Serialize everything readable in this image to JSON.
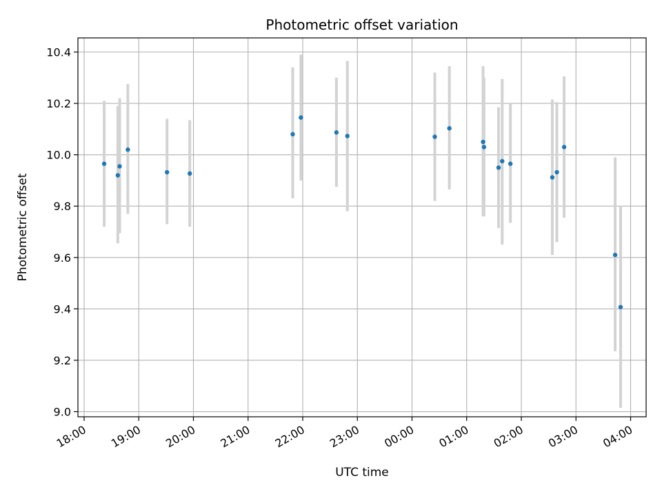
{
  "chart_data": {
    "type": "scatter",
    "title": "Photometric offset variation",
    "xlabel": "UTC time",
    "ylabel": "Photometric offset",
    "x_axis_type": "time",
    "x_start_date": "18:00",
    "xticks": [
      "18:00",
      "19:00",
      "20:00",
      "21:00",
      "22:00",
      "23:00",
      "00:00",
      "01:00",
      "02:00",
      "03:00",
      "04:00"
    ],
    "ylim": [
      8.98,
      10.455
    ],
    "yticks": [
      "9.0",
      "9.2",
      "9.4",
      "9.6",
      "9.8",
      "10.0",
      "10.2",
      "10.4"
    ],
    "grid": true,
    "point_color": "#1f77b4",
    "errorbar_color": "#d3d3d3",
    "points": [
      {
        "t": "18:22",
        "y": 9.965,
        "lo": 9.72,
        "hi": 10.21
      },
      {
        "t": "18:37",
        "y": 9.92,
        "lo": 9.655,
        "hi": 10.19
      },
      {
        "t": "18:39",
        "y": 9.955,
        "lo": 9.695,
        "hi": 10.22
      },
      {
        "t": "18:48",
        "y": 10.02,
        "lo": 9.77,
        "hi": 10.275
      },
      {
        "t": "19:31",
        "y": 9.932,
        "lo": 9.73,
        "hi": 10.14
      },
      {
        "t": "19:56",
        "y": 9.927,
        "lo": 9.72,
        "hi": 10.135
      },
      {
        "t": "21:49",
        "y": 10.08,
        "lo": 9.83,
        "hi": 10.34
      },
      {
        "t": "21:58",
        "y": 10.145,
        "lo": 9.9,
        "hi": 10.39
      },
      {
        "t": "22:37",
        "y": 10.087,
        "lo": 9.875,
        "hi": 10.3
      },
      {
        "t": "22:49",
        "y": 10.073,
        "lo": 9.78,
        "hi": 10.365
      },
      {
        "t": "00:25",
        "y": 10.07,
        "lo": 9.82,
        "hi": 10.32
      },
      {
        "t": "00:41",
        "y": 10.103,
        "lo": 9.865,
        "hi": 10.345
      },
      {
        "t": "01:18",
        "y": 10.05,
        "lo": 9.76,
        "hi": 10.345
      },
      {
        "t": "01:19",
        "y": 10.03,
        "lo": 9.76,
        "hi": 10.3
      },
      {
        "t": "01:35",
        "y": 9.95,
        "lo": 9.715,
        "hi": 10.185
      },
      {
        "t": "01:39",
        "y": 9.975,
        "lo": 9.65,
        "hi": 10.295
      },
      {
        "t": "01:48",
        "y": 9.965,
        "lo": 9.735,
        "hi": 10.2
      },
      {
        "t": "02:34",
        "y": 9.912,
        "lo": 9.61,
        "hi": 10.215
      },
      {
        "t": "02:39",
        "y": 9.932,
        "lo": 9.66,
        "hi": 10.205
      },
      {
        "t": "02:47",
        "y": 10.03,
        "lo": 9.755,
        "hi": 10.305
      },
      {
        "t": "03:43",
        "y": 9.61,
        "lo": 9.235,
        "hi": 9.99
      },
      {
        "t": "03:49",
        "y": 9.407,
        "lo": 9.015,
        "hi": 9.8
      }
    ]
  }
}
